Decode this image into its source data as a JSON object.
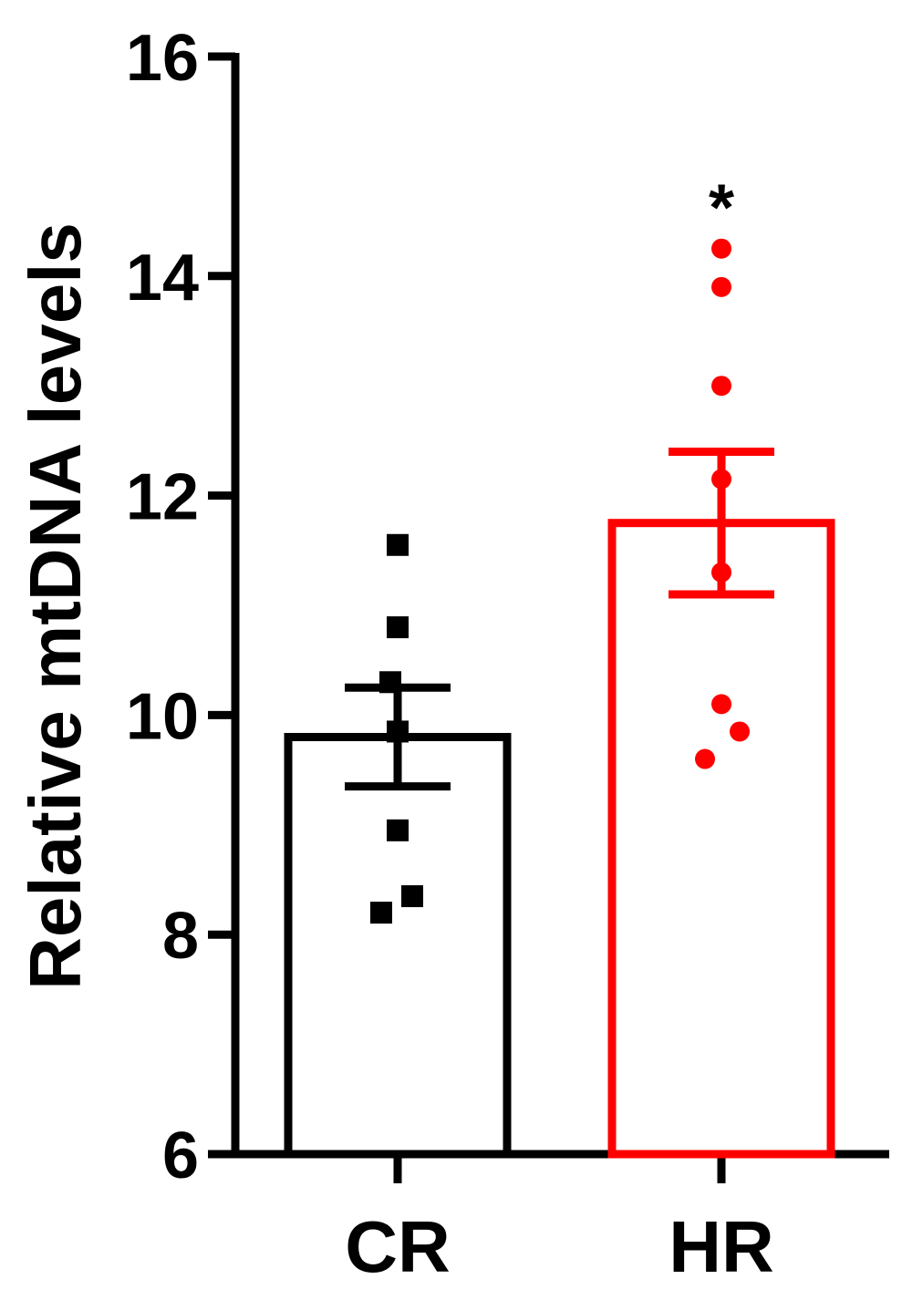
{
  "chart_data": {
    "type": "bar",
    "title": "",
    "xlabel": "",
    "ylabel": "Relative mtDNA levels",
    "ylim": [
      6,
      16
    ],
    "yticks": [
      6,
      8,
      10,
      12,
      14,
      16
    ],
    "ytick_labels": [
      "6",
      "8",
      "10",
      "12",
      "14",
      "16"
    ],
    "grid": false,
    "categories": [
      "CR",
      "HR"
    ],
    "values": [
      9.8,
      11.75
    ],
    "sem": [
      0.45,
      0.65
    ],
    "colors": [
      "#000000",
      "#ff0000"
    ],
    "point_markers": [
      "square",
      "circle"
    ],
    "points": [
      [
        11.55,
        10.8,
        10.3,
        9.85,
        8.95,
        8.35,
        8.2
      ],
      [
        14.25,
        13.9,
        13.0,
        12.15,
        11.3,
        10.1,
        9.85,
        9.6
      ]
    ],
    "annotations": [
      {
        "category": "HR",
        "text": "*"
      }
    ]
  }
}
